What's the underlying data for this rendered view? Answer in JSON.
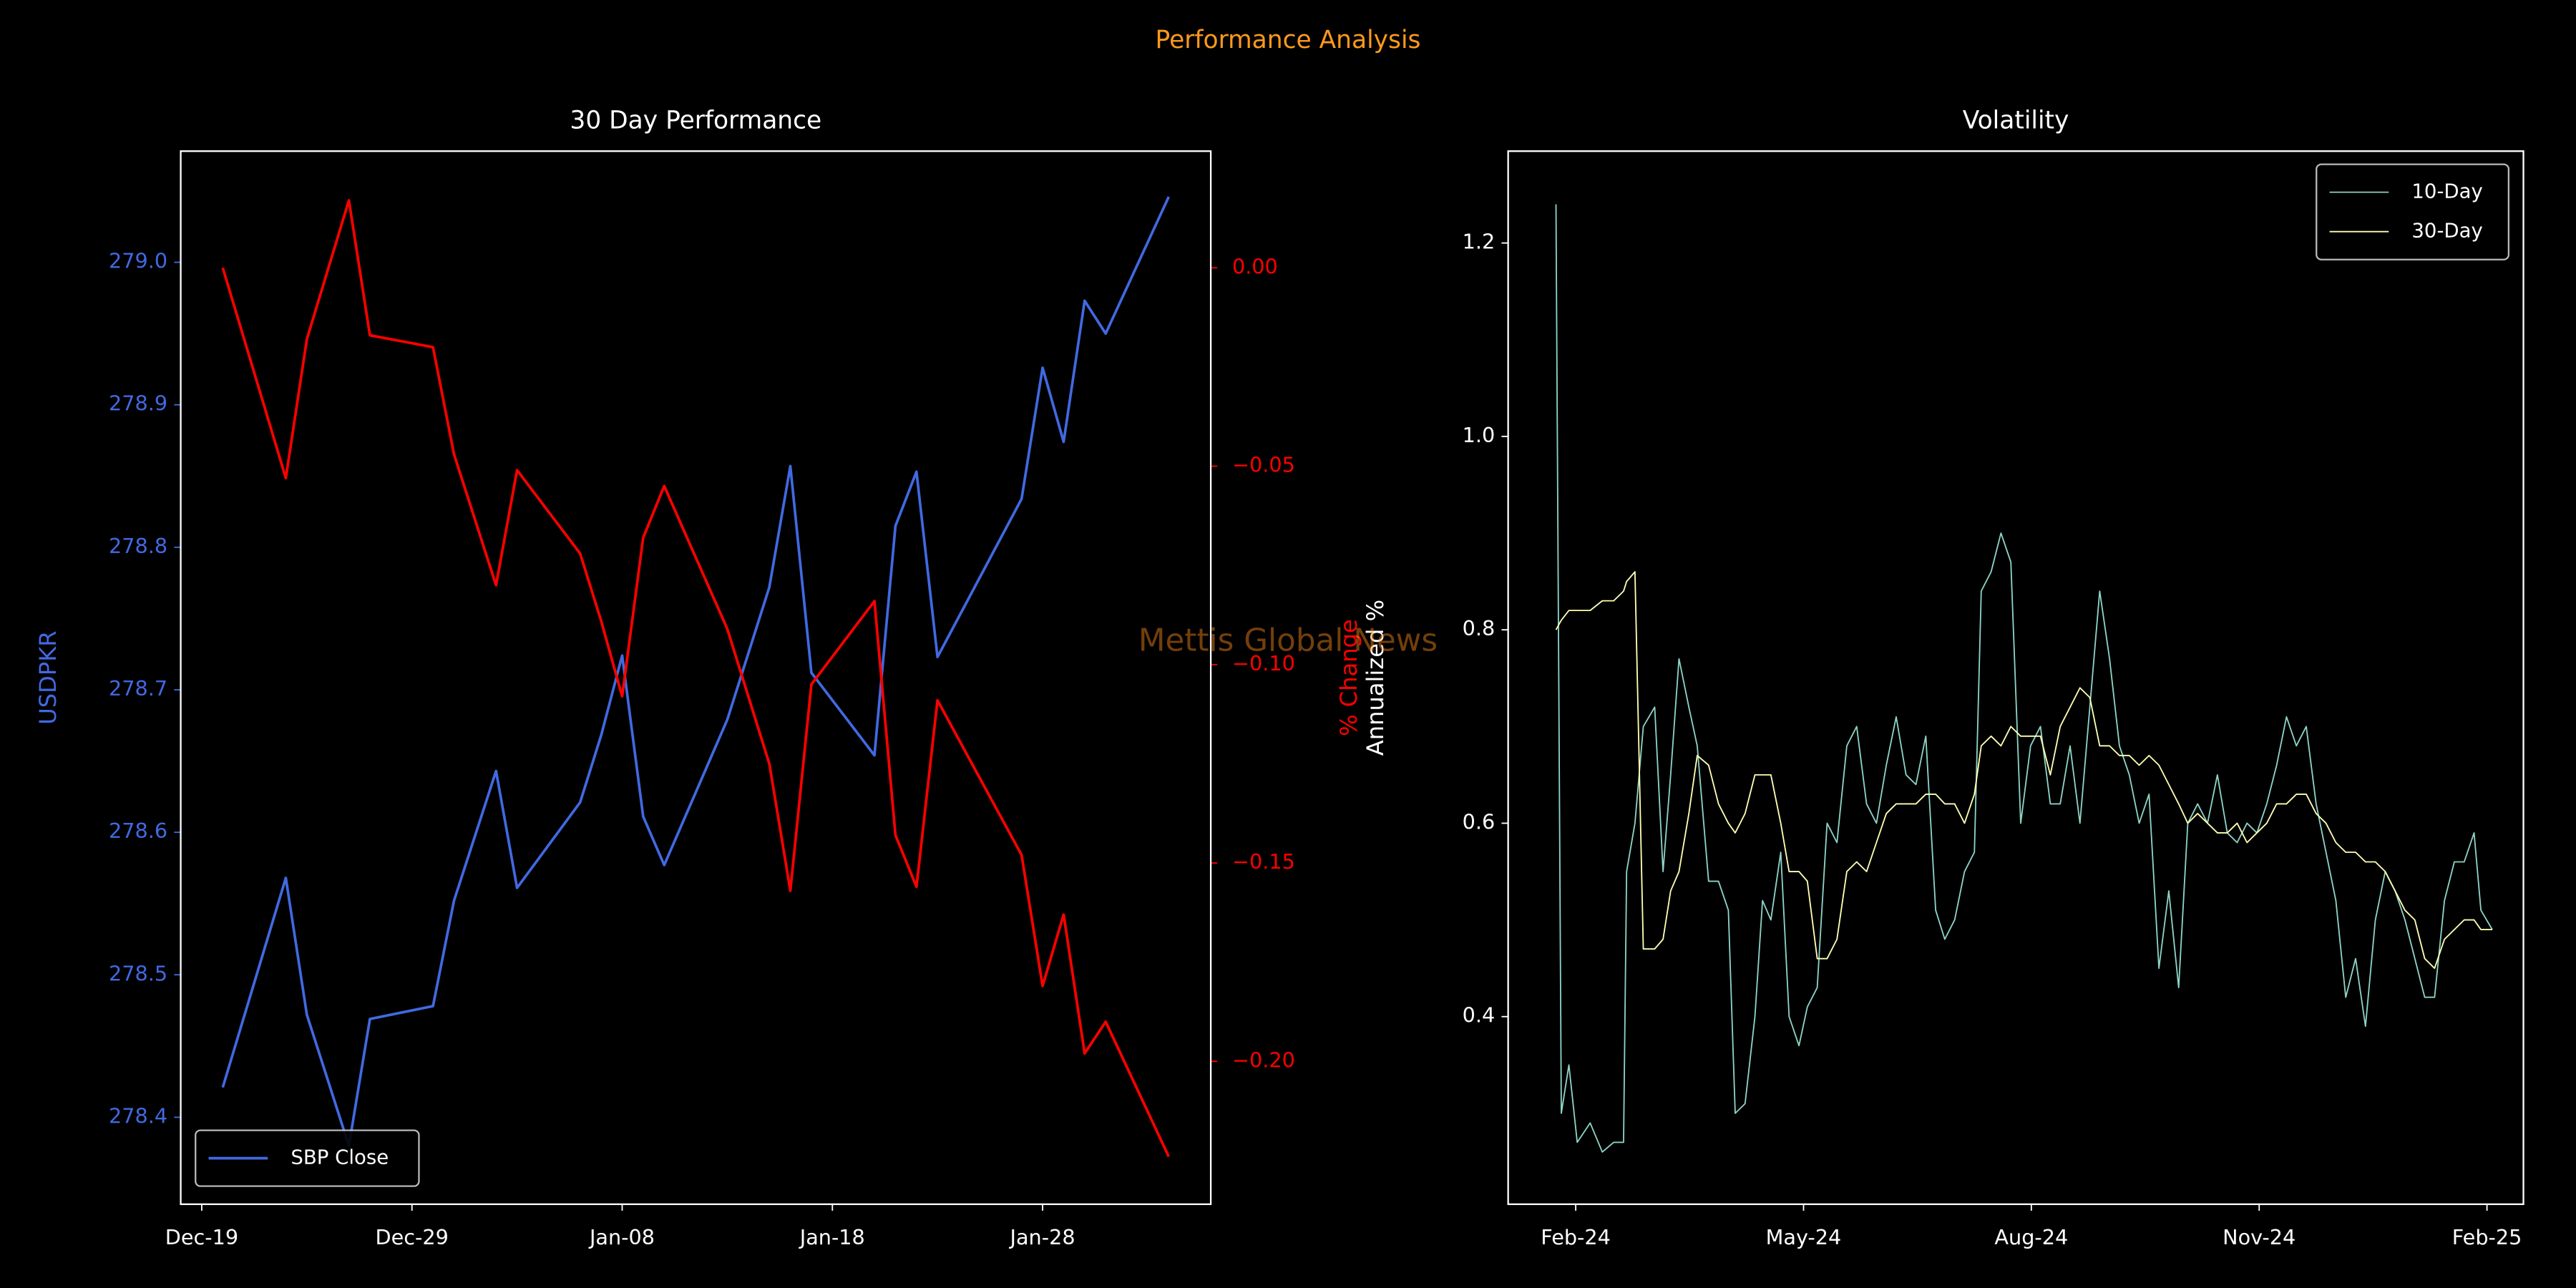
{
  "title": "Performance Analysis",
  "watermark": "Mettis Global News",
  "chart_data": [
    {
      "type": "line",
      "title": "30 Day Performance",
      "ylabel": "USDPKR",
      "y2label": "% Change",
      "ycolor": "#4169e1",
      "y2color": "#ff0000",
      "legend": "lower left",
      "x": [
        "Dec-20",
        "Dec-23",
        "Dec-24",
        "Dec-26",
        "Dec-27",
        "Dec-30",
        "Dec-31",
        "Jan-02",
        "Jan-03",
        "Jan-06",
        "Jan-07",
        "Jan-08",
        "Jan-09",
        "Jan-10",
        "Jan-13",
        "Jan-15",
        "Jan-16",
        "Jan-17",
        "Jan-20",
        "Jan-21",
        "Jan-22",
        "Jan-23",
        "Jan-27",
        "Jan-28",
        "Jan-29",
        "Jan-30",
        "Jan-31",
        "Feb-03"
      ],
      "xlim": [
        "Dec-18",
        "Feb-05"
      ],
      "xticks": [
        "Dec-19",
        "Dec-29",
        "Jan-08",
        "Jan-18",
        "Jan-28"
      ],
      "ylim": [
        278.339,
        279.078
      ],
      "yticks": [
        278.4,
        278.5,
        278.6,
        278.7,
        278.8,
        278.9,
        {
          "value": 279,
          "label": "279.0"
        }
      ],
      "y2lim": [
        -0.236,
        0.0294
      ],
      "y2ticks": [
        {
          "value": 0,
          "label": "0.00"
        },
        {
          "value": -0.05,
          "label": "−0.05"
        },
        {
          "value": -0.1,
          "label": "−0.10"
        },
        {
          "value": -0.15,
          "label": "−0.15"
        },
        {
          "value": -0.2,
          "label": "−0.20"
        }
      ],
      "series": [
        {
          "name": "SBP Close",
          "color": "#4169e1",
          "values": [
            278.421,
            278.568,
            278.472,
            278.38,
            278.469,
            278.478,
            278.552,
            278.643,
            278.561,
            278.621,
            278.668,
            278.724,
            278.611,
            278.577,
            278.679,
            278.772,
            278.857,
            278.712,
            278.654,
            278.815,
            278.853,
            278.723,
            278.834,
            278.926,
            278.874,
            278.973,
            278.95,
            279.046
          ]
        },
        {
          "color": "#ff0000",
          "axis": "y2",
          "values": [
            0,
            -0.053,
            -0.018,
            0.017,
            -0.017,
            -0.02,
            -0.047,
            -0.08,
            -0.051,
            -0.072,
            -0.089,
            -0.108,
            -0.068,
            -0.055,
            -0.091,
            -0.125,
            -0.157,
            -0.105,
            -0.084,
            -0.143,
            -0.156,
            -0.109,
            -0.148,
            -0.181,
            -0.163,
            -0.198,
            -0.19,
            -0.224
          ]
        }
      ]
    },
    {
      "type": "line",
      "title": "Volatility",
      "ylabel": "Annualized %",
      "legend": "upper right",
      "linewidth": 0.8,
      "x": [
        -0.26,
        -0.19,
        -0.09,
        0.02,
        0.19,
        0.35,
        0.5,
        0.63,
        0.67,
        0.78,
        0.89,
        1.04,
        1.15,
        1.25,
        1.36,
        1.49,
        1.6,
        1.75,
        1.88,
        2.01,
        2.1,
        2.23,
        2.36,
        2.46,
        2.57,
        2.7,
        2.81,
        2.94,
        3.05,
        3.18,
        3.31,
        3.44,
        3.57,
        3.7,
        3.83,
        3.96,
        4.09,
        4.22,
        4.35,
        4.48,
        4.61,
        4.74,
        4.86,
        4.99,
        5.12,
        5.25,
        5.34,
        5.47,
        5.6,
        5.73,
        5.86,
        5.99,
        6.12,
        6.25,
        6.38,
        6.51,
        6.64,
        6.77,
        6.9,
        7.03,
        7.16,
        7.29,
        7.42,
        7.55,
        7.68,
        7.81,
        7.94,
        8.06,
        8.19,
        8.32,
        8.45,
        8.58,
        8.71,
        8.84,
        8.97,
        9.1,
        9.23,
        9.36,
        9.49,
        9.62,
        9.75,
        9.88,
        10.01,
        10.14,
        10.27,
        10.4,
        10.53,
        10.66,
        10.79,
        10.92,
        11.05,
        11.18,
        11.31,
        11.44,
        11.57,
        11.7,
        11.83,
        11.92,
        12.07
      ],
      "xlim": [
        -0.89,
        12.48
      ],
      "xticks": [
        {
          "value": 0,
          "label": "Feb-24"
        },
        {
          "value": 3,
          "label": "May-24"
        },
        {
          "value": 6,
          "label": "Aug-24"
        },
        {
          "value": 9,
          "label": "Nov-24"
        },
        {
          "value": 12,
          "label": "Feb-25"
        }
      ],
      "ylim": [
        0.206,
        1.295
      ],
      "yticks": [
        0.4,
        0.6,
        0.8,
        {
          "value": 1,
          "label": "1.0"
        },
        1.2
      ],
      "series": [
        {
          "name": "10-Day",
          "color": "#8dd3c7",
          "values": [
            1.24,
            0.3,
            0.35,
            0.27,
            0.29,
            0.26,
            0.27,
            0.27,
            0.55,
            0.6,
            0.7,
            0.72,
            0.55,
            0.65,
            0.77,
            0.72,
            0.68,
            0.54,
            0.54,
            0.51,
            0.3,
            0.31,
            0.4,
            0.52,
            0.5,
            0.57,
            0.4,
            0.37,
            0.41,
            0.43,
            0.6,
            0.58,
            0.68,
            0.7,
            0.62,
            0.6,
            0.66,
            0.71,
            0.65,
            0.64,
            0.69,
            0.51,
            0.48,
            0.5,
            0.55,
            0.57,
            0.84,
            0.86,
            0.9,
            0.87,
            0.6,
            0.68,
            0.7,
            0.62,
            0.62,
            0.68,
            0.6,
            0.72,
            0.84,
            0.77,
            0.68,
            0.65,
            0.6,
            0.63,
            0.45,
            0.53,
            0.43,
            0.6,
            0.62,
            0.6,
            0.65,
            0.59,
            0.58,
            0.6,
            0.59,
            0.62,
            0.66,
            0.71,
            0.68,
            0.7,
            0.62,
            0.57,
            0.52,
            0.42,
            0.46,
            0.39,
            0.5,
            0.55,
            0.53,
            0.5,
            0.46,
            0.42,
            0.42,
            0.52,
            0.56,
            0.56,
            0.59,
            0.51,
            0.49
          ]
        },
        {
          "name": "30-Day",
          "color": "#ffffb3",
          "values": [
            0.8,
            0.81,
            0.82,
            0.82,
            0.82,
            0.83,
            0.83,
            0.84,
            0.85,
            0.86,
            0.47,
            0.47,
            0.48,
            0.53,
            0.55,
            0.61,
            0.67,
            0.66,
            0.62,
            0.6,
            0.59,
            0.61,
            0.65,
            0.65,
            0.65,
            0.6,
            0.55,
            0.55,
            0.54,
            0.46,
            0.46,
            0.48,
            0.55,
            0.56,
            0.55,
            0.58,
            0.61,
            0.62,
            0.62,
            0.62,
            0.63,
            0.63,
            0.62,
            0.62,
            0.6,
            0.63,
            0.68,
            0.69,
            0.68,
            0.7,
            0.69,
            0.69,
            0.69,
            0.65,
            0.7,
            0.72,
            0.74,
            0.73,
            0.68,
            0.68,
            0.67,
            0.67,
            0.66,
            0.67,
            0.66,
            0.64,
            0.62,
            0.6,
            0.61,
            0.6,
            0.59,
            0.59,
            0.6,
            0.58,
            0.59,
            0.6,
            0.62,
            0.62,
            0.63,
            0.63,
            0.61,
            0.6,
            0.58,
            0.57,
            0.57,
            0.56,
            0.56,
            0.55,
            0.53,
            0.51,
            0.5,
            0.46,
            0.45,
            0.48,
            0.49,
            0.5,
            0.5,
            0.49,
            0.49
          ]
        }
      ]
    }
  ]
}
